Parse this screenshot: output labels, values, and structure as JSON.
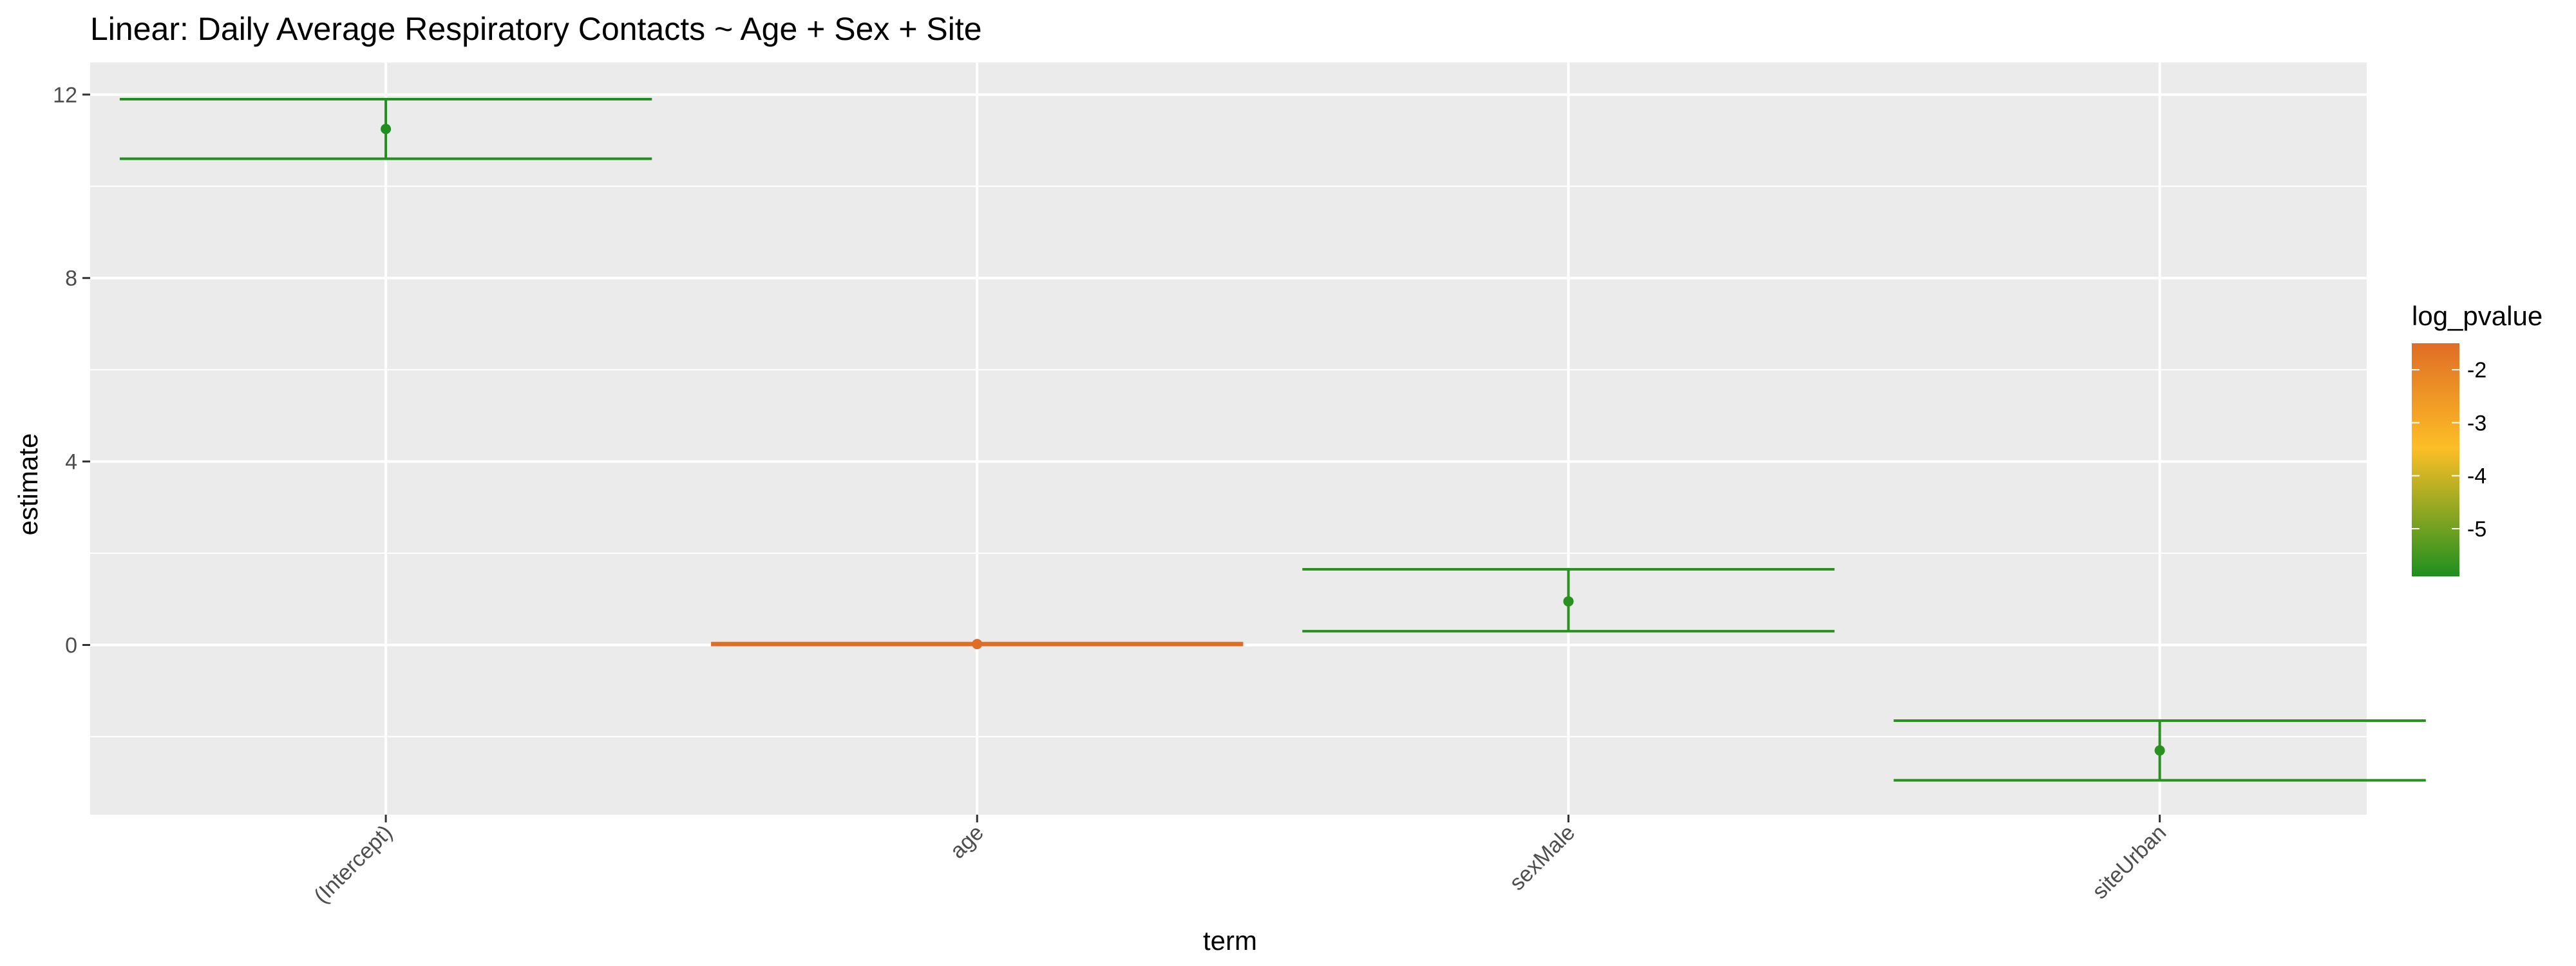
{
  "chart_data": {
    "type": "errorbar",
    "title": "Linear: Daily Average Respiratory Contacts ~ Age + Sex + Site",
    "xlabel": "term",
    "ylabel": "estimate",
    "ylim": [
      -3.7,
      12.7
    ],
    "yticks": [
      0,
      4,
      8,
      12
    ],
    "grid": true,
    "categories": [
      "(Intercept)",
      "age",
      "sexMale",
      "siteUrban"
    ],
    "points": [
      {
        "term": "(Intercept)",
        "estimate": 11.25,
        "conf_low": 10.6,
        "conf_high": 11.9,
        "log_pvalue": -5.9
      },
      {
        "term": "age",
        "estimate": 0.02,
        "conf_low": 0.0,
        "conf_high": 0.04,
        "log_pvalue": -1.5
      },
      {
        "term": "sexMale",
        "estimate": 0.95,
        "conf_low": 0.3,
        "conf_high": 1.65,
        "log_pvalue": -5.8
      },
      {
        "term": "siteUrban",
        "estimate": -2.3,
        "conf_low": -2.95,
        "conf_high": -1.65,
        "log_pvalue": -5.8
      }
    ],
    "legend": {
      "title": "log_pvalue",
      "placement": "right",
      "range": [
        -5.9,
        -1.5
      ],
      "ticks": [
        -2,
        -3,
        -4,
        -5
      ],
      "colors": {
        "low": "#1f8f1f",
        "mid": "#fdbe26",
        "high": "#e06d26"
      }
    }
  }
}
